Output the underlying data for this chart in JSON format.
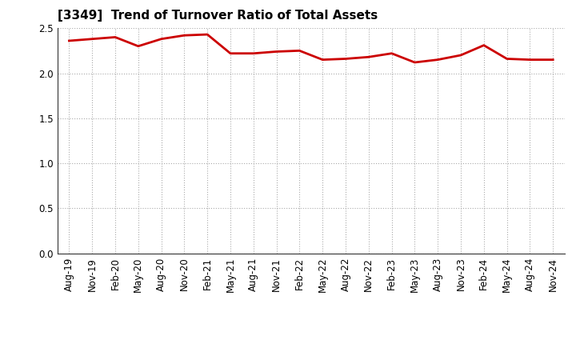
{
  "title": "[3349]  Trend of Turnover Ratio of Total Assets",
  "x_labels": [
    "Aug-19",
    "Nov-19",
    "Feb-20",
    "May-20",
    "Aug-20",
    "Nov-20",
    "Feb-21",
    "May-21",
    "Aug-21",
    "Nov-21",
    "Feb-22",
    "May-22",
    "Aug-22",
    "Nov-22",
    "Feb-23",
    "May-23",
    "Aug-23",
    "Nov-23",
    "Feb-24",
    "May-24",
    "Aug-24",
    "Nov-24"
  ],
  "values": [
    2.36,
    2.38,
    2.4,
    2.3,
    2.38,
    2.42,
    2.43,
    2.22,
    2.22,
    2.24,
    2.25,
    2.15,
    2.16,
    2.18,
    2.22,
    2.12,
    2.15,
    2.2,
    2.31,
    2.16,
    2.15,
    2.15
  ],
  "line_color": "#cc0000",
  "line_width": 2.0,
  "ylim": [
    0.0,
    2.5
  ],
  "yticks": [
    0.0,
    0.5,
    1.0,
    1.5,
    2.0,
    2.5
  ],
  "background_color": "#ffffff",
  "grid_color": "#aaaaaa",
  "title_fontsize": 11,
  "tick_fontsize": 8.5
}
